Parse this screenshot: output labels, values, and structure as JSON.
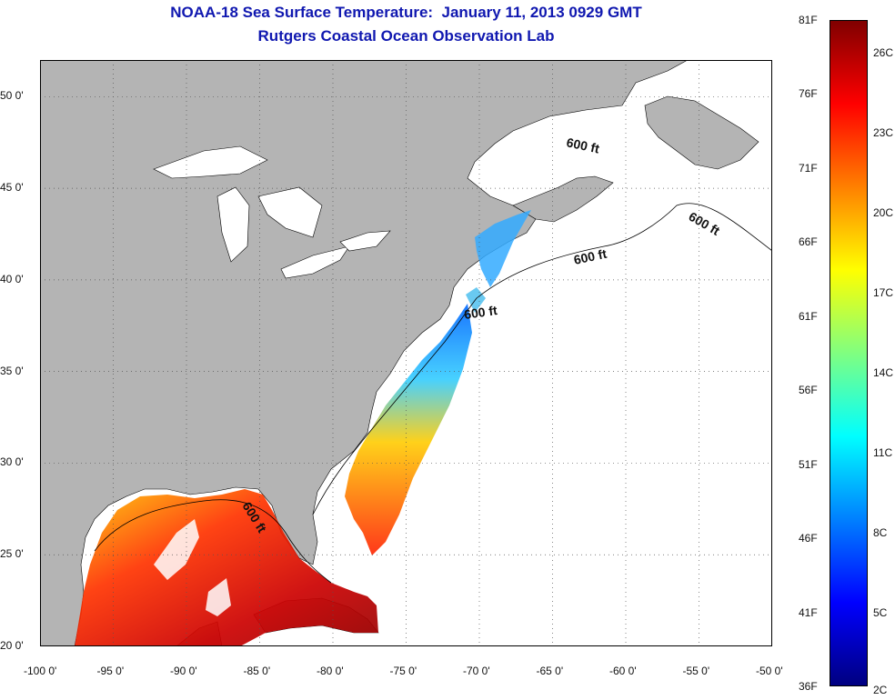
{
  "header": {
    "title": "NOAA-18 Sea Surface Temperature:  January 11, 2013 0929 GMT",
    "subtitle": "Rutgers Coastal Ocean Observation Lab"
  },
  "map": {
    "lon_range": [
      -100,
      -50
    ],
    "lat_range": [
      20,
      52
    ],
    "lat_ticks": [
      {
        "value": 20,
        "label": "20 0'"
      },
      {
        "value": 25,
        "label": "25 0'"
      },
      {
        "value": 30,
        "label": "30 0'"
      },
      {
        "value": 35,
        "label": "35 0'"
      },
      {
        "value": 40,
        "label": "40 0'"
      },
      {
        "value": 45,
        "label": "45 0'"
      },
      {
        "value": 50,
        "label": "50 0'"
      }
    ],
    "lon_ticks": [
      {
        "value": -100,
        "label": "-100 0'"
      },
      {
        "value": -95,
        "label": "-95 0'"
      },
      {
        "value": -90,
        "label": "-90 0'"
      },
      {
        "value": -85,
        "label": "-85 0'"
      },
      {
        "value": -80,
        "label": "-80 0'"
      },
      {
        "value": -75,
        "label": "-75 0'"
      },
      {
        "value": -70,
        "label": "-70 0'"
      },
      {
        "value": -65,
        "label": "-65 0'"
      },
      {
        "value": -60,
        "label": "-60 0'"
      },
      {
        "value": -55,
        "label": "-55 0'"
      },
      {
        "value": -50,
        "label": "-50 0'"
      }
    ],
    "contour_label": "600 ft",
    "colors": {
      "land": "#b4b4b4",
      "ocean": "#ffffff",
      "grid": "#555555",
      "title": "#1018b0"
    }
  },
  "colorbar": {
    "fahrenheit_labels": [
      "81F",
      "76F",
      "71F",
      "66F",
      "61F",
      "56F",
      "51F",
      "46F",
      "41F",
      "36F"
    ],
    "celsius_labels": [
      "26C",
      "23C",
      "20C",
      "17C",
      "14C",
      "11C",
      "8C",
      "5C",
      "2C"
    ],
    "stops": [
      "#800000",
      "#ff0000",
      "#ff8000",
      "#ffff00",
      "#80ff80",
      "#00ffff",
      "#0080ff",
      "#0000ff",
      "#000080"
    ]
  }
}
